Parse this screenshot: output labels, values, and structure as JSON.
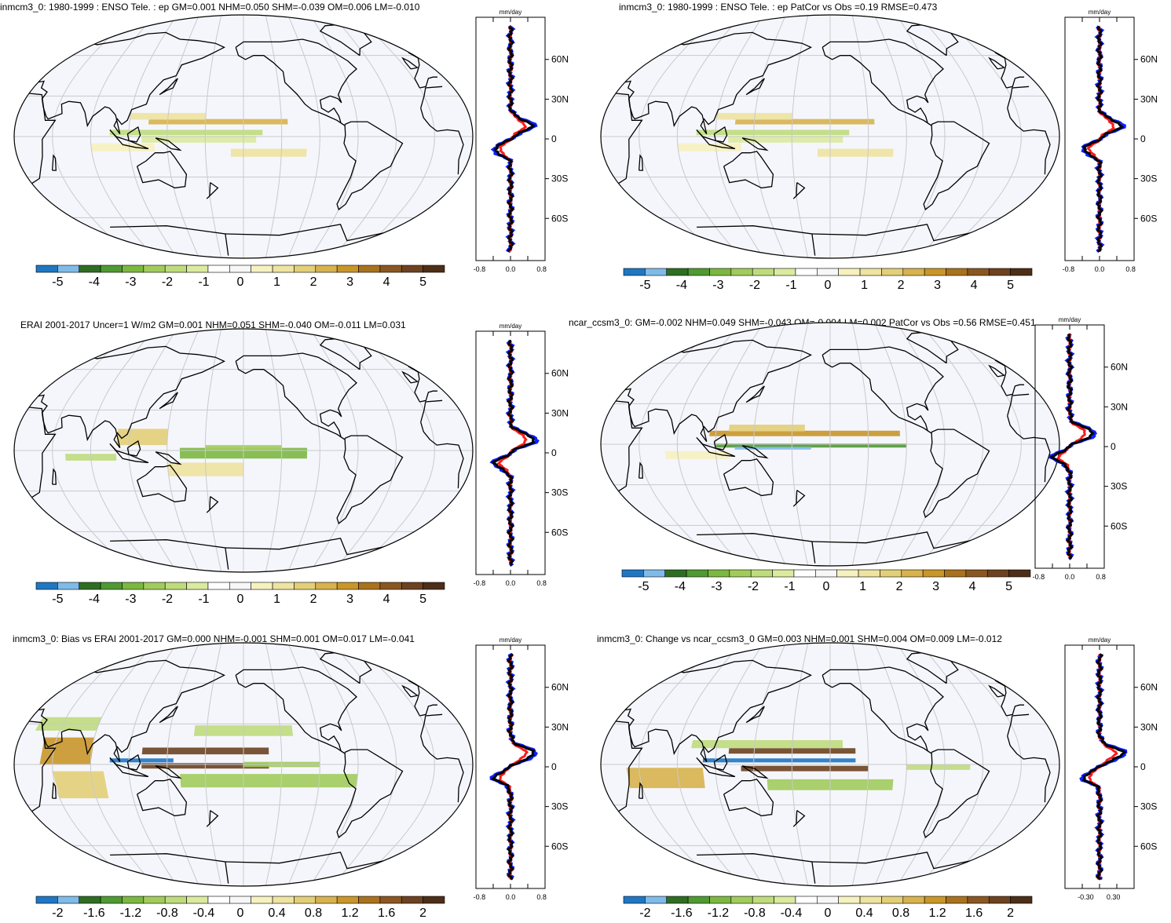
{
  "colorbar_colors": [
    "#1f77c4",
    "#7fbbe8",
    "#2f6e22",
    "#4f9a32",
    "#7cb840",
    "#a1cc5c",
    "#bfdc7c",
    "#daea9f",
    "#ffffff",
    "#f7f7f7",
    "#f6f2c0",
    "#eee3a0",
    "#e3cf78",
    "#d7b24e",
    "#c99629",
    "#a8721e",
    "#8a5722",
    "#6c4220",
    "#4d2e17"
  ],
  "colors": {
    "ocean": "#f5f6fc",
    "grid": "#c9c9c9",
    "obs": "#ff1a1a",
    "model": "#0a22ff",
    "mean": "#000000"
  },
  "panels": [
    {
      "title": "inmcm3_0: 1980-1999 : ENSO Tele. : ep GM=0.001 NHM=0.050 SHM=-0.039 OM=0.006 LM=-0.010",
      "unit": "mm/day",
      "lat_labels": [
        "60N",
        "30N",
        "0",
        "30S",
        "60S"
      ],
      "xtick_labels": [
        "-0.8",
        "0.0",
        "0.8"
      ],
      "colorbar_labels": [
        "-5",
        "-4",
        "-3",
        "-2",
        "-1",
        "0",
        "1",
        "2",
        "3",
        "4",
        "5"
      ]
    },
    {
      "title": "inmcm3_0: 1980-1999 : ENSO Tele. : ep PatCor vs Obs =0.19 RMSE=0.473",
      "unit": "mm/day",
      "lat_labels": [
        "60N",
        "30N",
        "0",
        "30S",
        "60S"
      ],
      "xtick_labels": [
        "-0.8",
        "0.0",
        "0.8"
      ],
      "colorbar_labels": [
        "-5",
        "-4",
        "-3",
        "-2",
        "-1",
        "0",
        "1",
        "2",
        "3",
        "4",
        "5"
      ]
    },
    {
      "title": "ERAI 2001-2017 Uncer=1 W/m2 GM=0.001 NHM=0.051 SHM=-0.040 OM=-0.011 LM=0.031",
      "unit": "mm/day",
      "lat_labels": [
        "60N",
        "30N",
        "0",
        "30S",
        "60S"
      ],
      "xtick_labels": [
        "-0.8",
        "0.0",
        "0.8"
      ],
      "colorbar_labels": [
        "-5",
        "-4",
        "-3",
        "-2",
        "-1",
        "0",
        "1",
        "2",
        "3",
        "4",
        "5"
      ]
    },
    {
      "title": "ncar_ccsm3_0: GM=-0.002 NHM=0.049 SHM=-0.043 OM=-0.004 LM=0.002 PatCor vs Obs =0.56 RMSE=0.451",
      "unit": "mm/day",
      "lat_labels": [
        "60N",
        "30N",
        "0",
        "30S",
        "60S"
      ],
      "xtick_labels": [
        "-0.8",
        "0.0",
        "0.8"
      ],
      "colorbar_labels": [
        "-5",
        "-4",
        "-3",
        "-2",
        "-1",
        "0",
        "1",
        "2",
        "3",
        "4",
        "5"
      ]
    },
    {
      "title": "inmcm3_0: Bias vs ERAI 2001-2017 GM=0.000 NHM=-0.001 SHM=0.001 OM=0.017 LM=-0.041",
      "unit": "mm/day",
      "lat_labels": [
        "60N",
        "30N",
        "0",
        "30S",
        "60S"
      ],
      "xtick_labels": [
        "-0.8",
        "0.0",
        "0.8"
      ],
      "colorbar_labels": [
        "-2",
        "-1.6",
        "-1.2",
        "-0.8",
        "-0.4",
        "0",
        "0.4",
        "0.8",
        "1.2",
        "1.6",
        "2"
      ]
    },
    {
      "title": "inmcm3_0: Change vs ncar_ccsm3_0 GM=0.003 NHM=0.001 SHM=0.004 OM=0.009 LM=-0.012",
      "unit": "mm/day",
      "lat_labels": [
        "60N",
        "30N",
        "0",
        "30S",
        "60S"
      ],
      "xtick_labels": [
        "-0.30",
        "0.30"
      ],
      "colorbar_labels": [
        "-2",
        "-1.6",
        "-1.2",
        "-0.8",
        "-0.4",
        "0",
        "0.4",
        "0.8",
        "1.2",
        "1.6",
        "2"
      ]
    }
  ]
}
